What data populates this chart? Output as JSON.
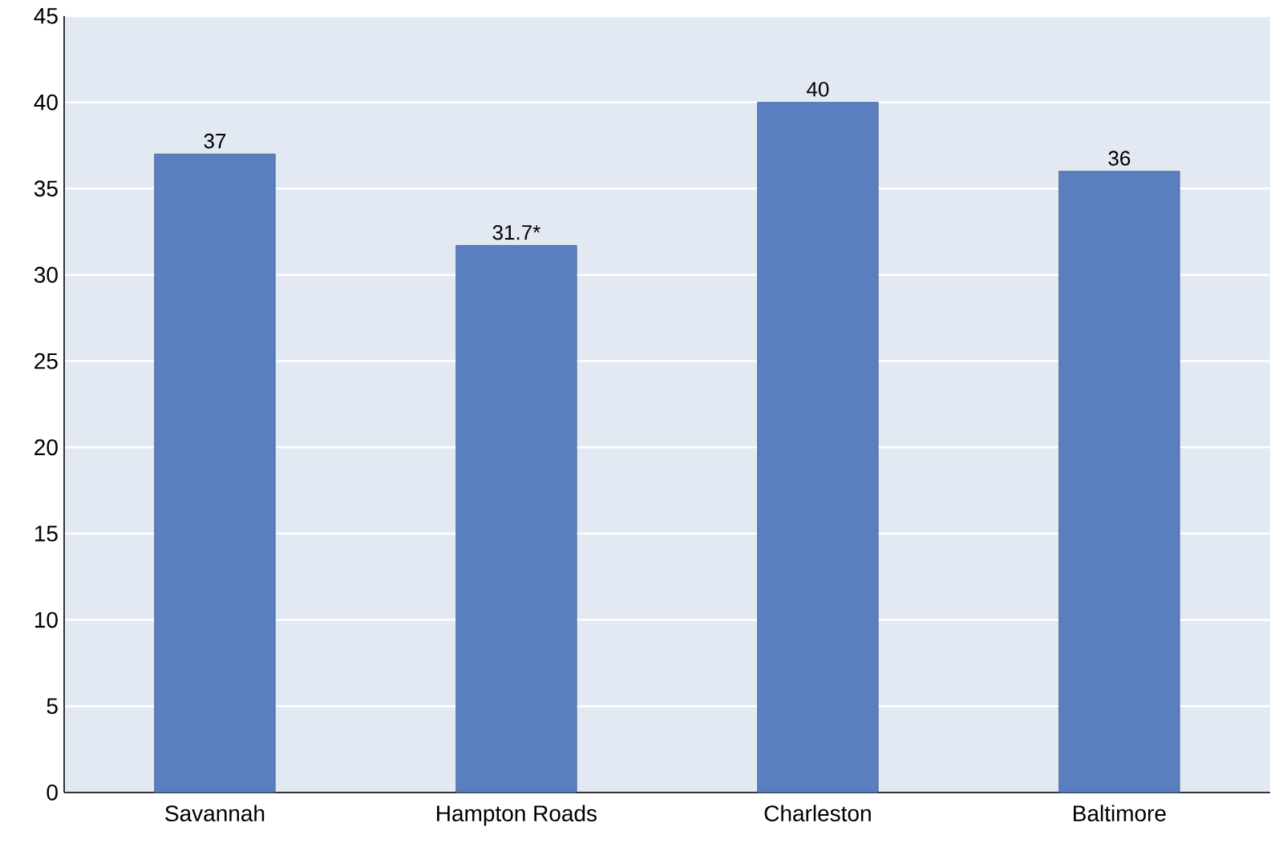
{
  "chart_data": {
    "type": "bar",
    "categories": [
      "Savannah",
      "Hampton Roads",
      "Charleston",
      "Baltimore"
    ],
    "values": [
      37,
      31.7,
      40,
      36
    ],
    "value_labels": [
      "37",
      "31.7*",
      "40",
      "36"
    ],
    "color": "#5a7fc0",
    "ylim": [
      0,
      45
    ],
    "yticks": [
      0,
      5,
      10,
      15,
      20,
      25,
      30,
      35,
      40,
      45
    ],
    "grid": "y"
  }
}
